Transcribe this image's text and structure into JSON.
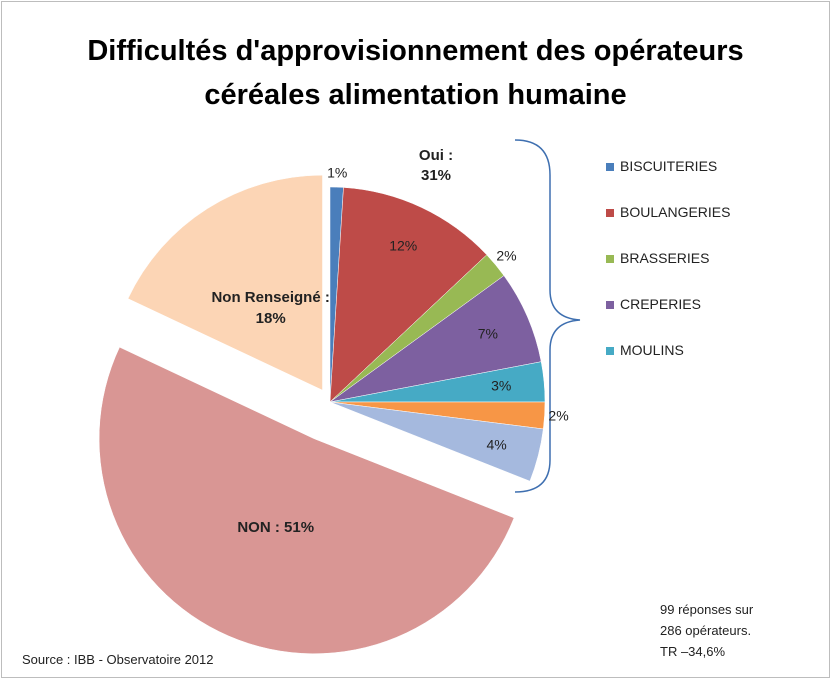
{
  "chart_data": {
    "type": "pie",
    "title": "Difficultés d'approvisionnement des opérateurs\ncéréales alimentation humaine",
    "categories": [
      "BISCUITERIES",
      "BOULANGERIES",
      "BRASSERIES",
      "CREPERIES",
      "MOULINS",
      null,
      null,
      null,
      null
    ],
    "values": [
      1,
      12,
      2,
      7,
      3,
      2,
      4,
      51,
      18
    ],
    "value_labels": [
      "1%",
      "12%",
      "2%",
      "7%",
      "3%",
      "2%",
      "4%",
      "NON : 51%",
      "Non Renseigné :\n18%"
    ],
    "colors": [
      "#4a7ebb",
      "#be4b48",
      "#98b954",
      "#7d60a0",
      "#46aac5",
      "#f79646",
      "#a5b9de",
      "#d99694",
      "#fcd5b5"
    ],
    "annotations": [
      "Oui :\n31%",
      "Source : IBB - Observatoire 2012",
      "99 réponses sur\n286 opérateurs.\nTR –34,6%"
    ]
  }
}
